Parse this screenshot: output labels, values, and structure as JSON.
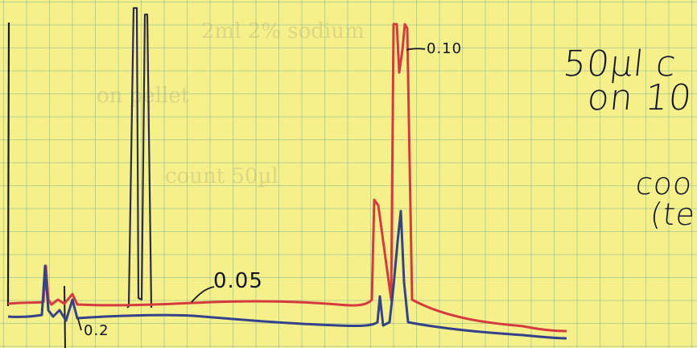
{
  "annotations": {
    "peak_label_red": "0.10",
    "baseline_label": "0.05",
    "start_label": "0.2",
    "note_line1": "50µl c",
    "note_line2": "on 10",
    "note_count": "coo",
    "note_paren": "(te"
  },
  "colors": {
    "paper": "#f6f08a",
    "grid": "#7fb0a0",
    "red_trace": "#d43a40",
    "blue_trace": "#33428a",
    "ink": "#14142e"
  },
  "show_through_text": [
    "count 50µl",
    "on pellet",
    "2ml 2% sodium"
  ]
}
